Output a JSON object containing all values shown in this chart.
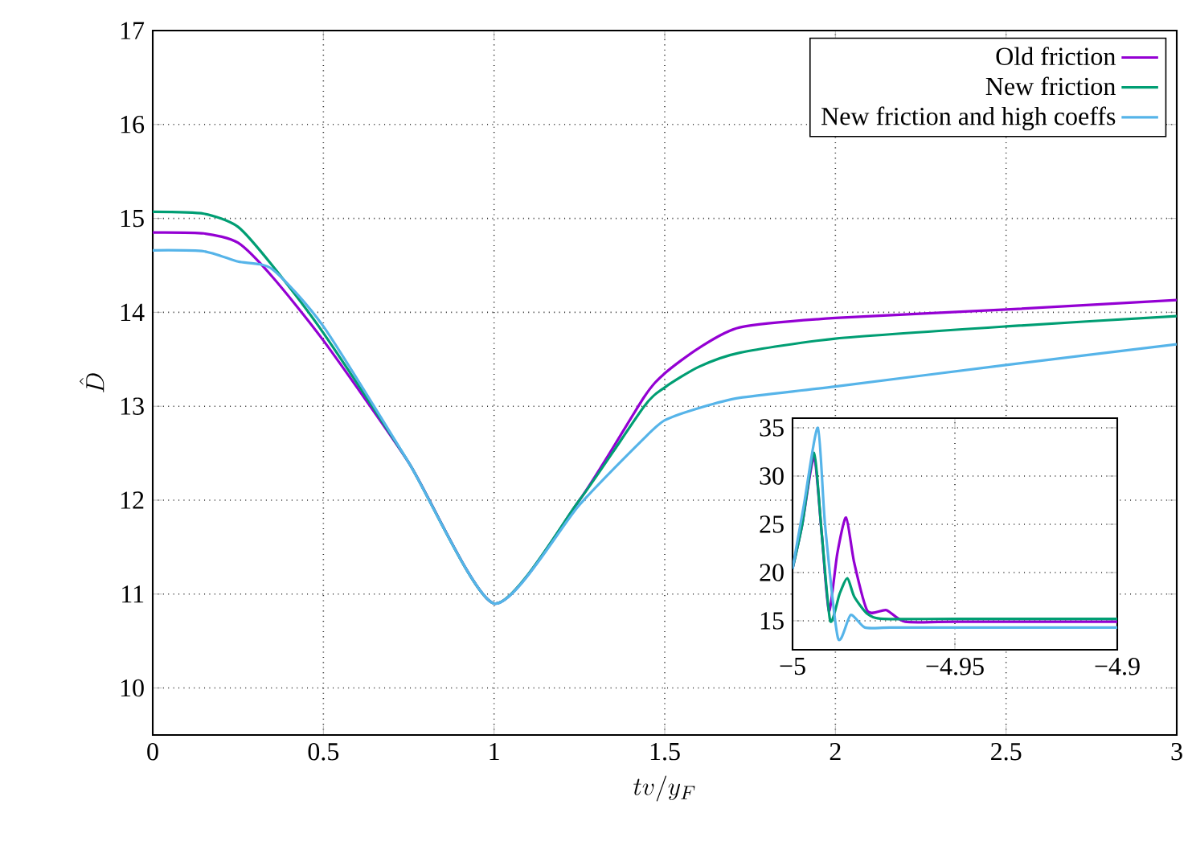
{
  "chart_data": [
    {
      "type": "line",
      "xlabel": "tv/y_F",
      "ylabel": "\\hat{D}",
      "xlim": [
        0,
        3
      ],
      "ylim": [
        9.5,
        17
      ],
      "xticks": [
        0,
        0.5,
        1,
        1.5,
        2,
        2.5,
        3
      ],
      "yticks": [
        10,
        11,
        12,
        13,
        14,
        15,
        16,
        17
      ],
      "grid": true,
      "legend": "top right",
      "marker": "none",
      "line_style": "solid",
      "series": [
        {
          "name": "Old friction",
          "color": "#9400d3",
          "x": [
            0,
            0.15,
            0.25,
            0.35,
            0.5,
            0.75,
            1,
            1.25,
            1.44,
            1.5,
            1.6,
            1.72,
            2,
            2.5,
            3
          ],
          "values": [
            14.85,
            14.84,
            14.74,
            14.38,
            13.7,
            12.4,
            10.9,
            12.0,
            13.1,
            13.35,
            13.62,
            13.84,
            13.94,
            14.03,
            14.13
          ]
        },
        {
          "name": "New friction",
          "color": "#009e73",
          "x": [
            0,
            0.15,
            0.25,
            0.35,
            0.5,
            0.75,
            1,
            1.25,
            1.44,
            1.5,
            1.6,
            1.72,
            2,
            2.5,
            3
          ],
          "values": [
            15.07,
            15.05,
            14.91,
            14.5,
            13.78,
            12.4,
            10.9,
            12.0,
            13.0,
            13.2,
            13.42,
            13.57,
            13.72,
            13.85,
            13.96
          ]
        },
        {
          "name": "New friction and high coeffs",
          "color": "#56b4e9",
          "x": [
            0,
            0.15,
            0.25,
            0.35,
            0.5,
            0.75,
            1,
            1.25,
            1.44,
            1.5,
            1.6,
            1.72,
            2,
            2.5,
            3
          ],
          "values": [
            14.66,
            14.65,
            14.54,
            14.46,
            13.85,
            12.4,
            10.9,
            11.95,
            12.66,
            12.85,
            12.98,
            13.09,
            13.21,
            13.44,
            13.66
          ]
        }
      ]
    },
    {
      "type": "line",
      "xlim": [
        -5,
        -4.9
      ],
      "ylim": [
        12,
        36
      ],
      "xticks": [
        {
          "value": -5,
          "label": "−5"
        },
        {
          "value": -4.95,
          "label": "−4.95"
        },
        {
          "value": -4.9,
          "label": "−4.9"
        }
      ],
      "yticks": [
        15,
        20,
        25,
        30,
        35
      ],
      "grid": true,
      "marker": "none",
      "line_style": "solid",
      "series": [
        {
          "color": "#9400d3",
          "x": [
            -5,
            -4.997,
            -4.9934,
            -4.991,
            -4.9888,
            -4.9862,
            -4.9835,
            -4.981,
            -4.9769,
            -4.9711,
            -4.9653,
            -4.95,
            -4.9
          ],
          "values": [
            20.4,
            25,
            31.9,
            24,
            16,
            22,
            25.7,
            21,
            16,
            16.1,
            14.9,
            14.9,
            14.9
          ]
        },
        {
          "color": "#009e73",
          "x": [
            -5,
            -4.997,
            -4.9934,
            -4.991,
            -4.9884,
            -4.9855,
            -4.9831,
            -4.981,
            -4.9769,
            -4.972,
            -4.95,
            -4.9
          ],
          "values": [
            20.4,
            25,
            32.4,
            24,
            15,
            17.8,
            19.4,
            17.5,
            15.7,
            15.2,
            15.2,
            15.2
          ]
        },
        {
          "color": "#56b4e9",
          "x": [
            -5,
            -4.9965,
            -4.9922,
            -4.99,
            -4.986,
            -4.9821,
            -4.9777,
            -4.97,
            -4.95,
            -4.9
          ],
          "values": [
            20.4,
            27,
            35,
            25,
            13.2,
            15.6,
            14.3,
            14.3,
            14.3,
            14.3
          ]
        }
      ]
    }
  ]
}
